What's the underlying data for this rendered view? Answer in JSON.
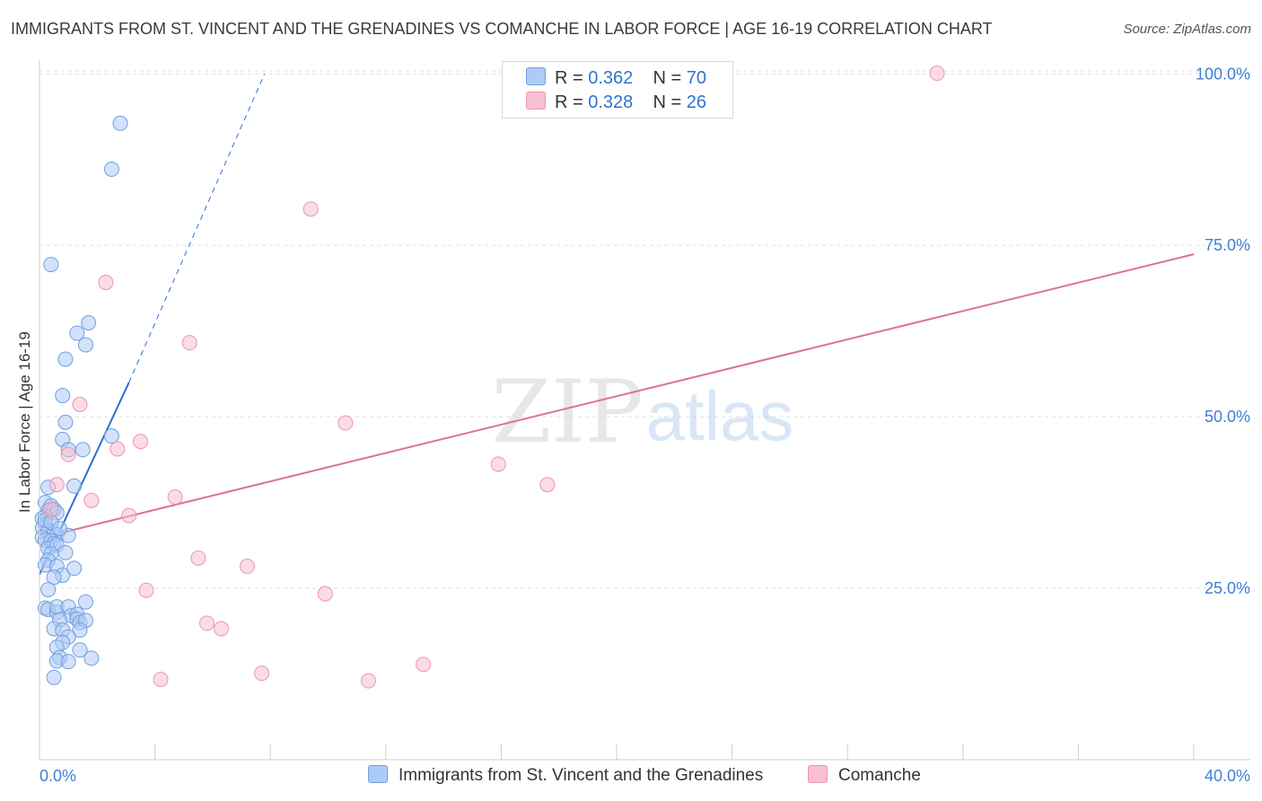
{
  "title": "IMMIGRANTS FROM ST. VINCENT AND THE GRENADINES VS COMANCHE IN LABOR FORCE | AGE 16-19 CORRELATION CHART",
  "source": "Source: ZipAtlas.com",
  "watermark": {
    "zip": "ZIP",
    "atlas": "atlas"
  },
  "legend": {
    "rows": [
      {
        "r_label": "R = ",
        "r_value": "0.362",
        "n_label": "N = ",
        "n_value": "70"
      },
      {
        "r_label": "R = ",
        "r_value": "0.328",
        "n_label": "N = ",
        "n_value": "26"
      }
    ]
  },
  "colors": {
    "blue_fill": "#aecbf5",
    "blue_stroke": "#6e9fe0",
    "blue_line": "#2b6fd1",
    "pink_fill": "#f7c0d0",
    "pink_stroke": "#eb95ae",
    "pink_line": "#e07098",
    "axis_text": "#3f7fd6",
    "grid": "#e0e0e0"
  },
  "chart_data": {
    "type": "scatter",
    "title": "IMMIGRANTS FROM ST. VINCENT AND THE GRENADINES VS COMANCHE IN LABOR FORCE | AGE 16-19 CORRELATION CHART",
    "xlabel": "",
    "ylabel": "In Labor Force | Age 16-19",
    "xlim": [
      0,
      40
    ],
    "ylim": [
      0,
      102
    ],
    "x_tick_labels": [
      "0.0%",
      "40.0%"
    ],
    "y_ticks": [
      25,
      50,
      75,
      100
    ],
    "y_tick_labels": [
      "25.0%",
      "50.0%",
      "75.0%",
      "100.0%"
    ],
    "grid": true,
    "legend_position": "top-center",
    "series": [
      {
        "name": "Immigrants from St. Vincent and the Grenadines",
        "color": "#aecbf5",
        "points": [
          [
            2.8,
            92.8
          ],
          [
            2.5,
            86.1
          ],
          [
            0.4,
            72.2
          ],
          [
            1.7,
            63.7
          ],
          [
            1.3,
            62.2
          ],
          [
            1.6,
            60.5
          ],
          [
            0.9,
            58.4
          ],
          [
            0.8,
            53.1
          ],
          [
            0.9,
            49.2
          ],
          [
            0.8,
            46.7
          ],
          [
            1.0,
            45.2
          ],
          [
            1.5,
            45.2
          ],
          [
            2.5,
            47.2
          ],
          [
            0.3,
            39.7
          ],
          [
            1.2,
            39.9
          ],
          [
            0.2,
            37.5
          ],
          [
            0.4,
            37.0
          ],
          [
            0.3,
            36.3
          ],
          [
            0.5,
            36.5
          ],
          [
            0.6,
            36.0
          ],
          [
            0.2,
            35.5
          ],
          [
            0.1,
            35.2
          ],
          [
            0.2,
            34.3
          ],
          [
            0.1,
            33.8
          ],
          [
            0.3,
            33.4
          ],
          [
            0.5,
            33.0
          ],
          [
            0.6,
            32.8
          ],
          [
            1.0,
            32.7
          ],
          [
            0.1,
            32.4
          ],
          [
            0.2,
            32.0
          ],
          [
            0.4,
            31.9
          ],
          [
            0.5,
            31.5
          ],
          [
            0.3,
            30.8
          ],
          [
            0.6,
            31.3
          ],
          [
            0.4,
            30.0
          ],
          [
            0.3,
            29.1
          ],
          [
            0.2,
            28.4
          ],
          [
            0.6,
            28.2
          ],
          [
            0.8,
            26.9
          ],
          [
            0.5,
            26.6
          ],
          [
            0.2,
            22.1
          ],
          [
            0.3,
            21.9
          ],
          [
            0.6,
            21.5
          ],
          [
            0.6,
            22.3
          ],
          [
            1.0,
            22.3
          ],
          [
            1.6,
            23.0
          ],
          [
            1.1,
            21.0
          ],
          [
            1.3,
            21.2
          ],
          [
            0.7,
            20.4
          ],
          [
            1.3,
            20.5
          ],
          [
            1.4,
            20.0
          ],
          [
            1.6,
            20.3
          ],
          [
            0.5,
            19.1
          ],
          [
            0.8,
            18.9
          ],
          [
            1.4,
            18.9
          ],
          [
            1.0,
            17.9
          ],
          [
            0.8,
            17.1
          ],
          [
            0.6,
            16.4
          ],
          [
            1.4,
            16.0
          ],
          [
            0.7,
            14.9
          ],
          [
            1.8,
            14.8
          ],
          [
            0.6,
            14.4
          ],
          [
            1.0,
            14.3
          ],
          [
            0.5,
            12.0
          ],
          [
            0.2,
            34.9
          ],
          [
            0.4,
            34.6
          ],
          [
            0.7,
            33.7
          ],
          [
            0.9,
            30.2
          ],
          [
            1.2,
            27.9
          ],
          [
            0.3,
            24.8
          ]
        ]
      },
      {
        "name": "Comanche",
        "color": "#f7c0d0",
        "points": [
          [
            31.1,
            100.1
          ],
          [
            9.4,
            80.3
          ],
          [
            2.3,
            69.6
          ],
          [
            5.2,
            60.8
          ],
          [
            1.4,
            51.8
          ],
          [
            10.6,
            49.1
          ],
          [
            3.5,
            46.4
          ],
          [
            2.7,
            45.3
          ],
          [
            1.0,
            44.5
          ],
          [
            15.9,
            43.1
          ],
          [
            0.6,
            40.1
          ],
          [
            17.6,
            40.1
          ],
          [
            4.7,
            38.3
          ],
          [
            1.8,
            37.8
          ],
          [
            3.1,
            35.6
          ],
          [
            5.5,
            29.4
          ],
          [
            7.2,
            28.2
          ],
          [
            3.7,
            24.7
          ],
          [
            9.9,
            24.2
          ],
          [
            5.8,
            19.9
          ],
          [
            6.3,
            19.1
          ],
          [
            7.7,
            12.6
          ],
          [
            4.2,
            11.7
          ],
          [
            11.4,
            11.5
          ],
          [
            13.3,
            13.9
          ],
          [
            0.4,
            36.5
          ]
        ]
      }
    ],
    "trendlines": [
      {
        "series": "Immigrants from St. Vincent and the Grenadines",
        "style": "solid",
        "x": [
          0,
          3.1
        ],
        "y": [
          27,
          55
        ]
      },
      {
        "series": "Immigrants from St. Vincent and the Grenadines",
        "style": "dashed",
        "x": [
          3.1,
          7.8
        ],
        "y": [
          55,
          100
        ]
      },
      {
        "series": "Comanche",
        "style": "solid",
        "x": [
          0,
          40
        ],
        "y": [
          32.3,
          73.7
        ]
      }
    ]
  }
}
